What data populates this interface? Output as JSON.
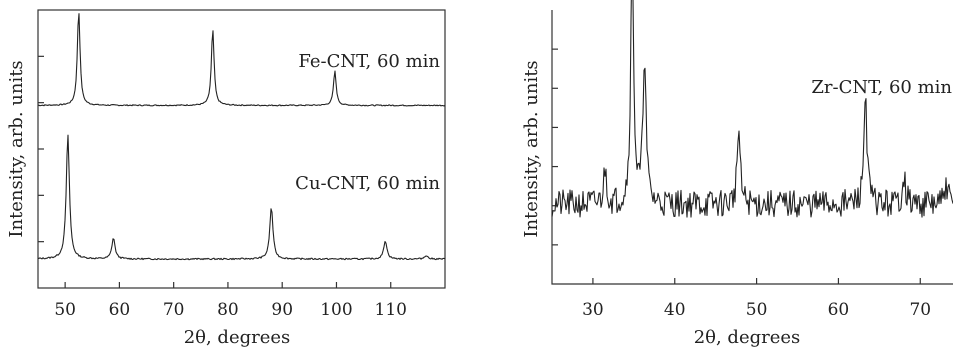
{
  "chart_data": [
    {
      "type": "line",
      "xlabel": "2θ, degrees",
      "ylabel": "Intensity, arb. units",
      "xlim": [
        45,
        120
      ],
      "x_ticks": [
        50,
        60,
        70,
        80,
        90,
        100,
        110
      ],
      "y_tick_count": 5,
      "grid": false,
      "series": [
        {
          "label": "Fe-CNT, 60 min",
          "baseline": 0.08,
          "peaks": [
            {
              "x": 52.5,
              "height": 1.0
            },
            {
              "x": 77.2,
              "height": 0.8
            },
            {
              "x": 99.7,
              "height": 0.36
            }
          ]
        },
        {
          "label": "Cu-CNT, 60 min",
          "baseline": 0.04,
          "peaks": [
            {
              "x": 50.5,
              "height": 1.0
            },
            {
              "x": 58.9,
              "height": 0.17
            },
            {
              "x": 88.0,
              "height": 0.42
            },
            {
              "x": 109.0,
              "height": 0.15
            },
            {
              "x": 116.5,
              "height": 0.03
            }
          ]
        }
      ]
    },
    {
      "type": "line",
      "xlabel": "2θ, degrees",
      "ylabel": "Intensity, arb. units",
      "xlim": [
        25,
        74
      ],
      "x_ticks": [
        30,
        40,
        50,
        60,
        70
      ],
      "y_tick_count": 6,
      "grid": false,
      "series": [
        {
          "label": "Zr-CNT, 60 min",
          "baseline": 0.24,
          "peaks": [
            {
              "x": 31.5,
              "height": 0.14
            },
            {
              "x": 34.8,
              "height": 0.98
            },
            {
              "x": 36.3,
              "height": 0.6
            },
            {
              "x": 47.8,
              "height": 0.3
            },
            {
              "x": 63.3,
              "height": 0.45
            },
            {
              "x": 68.0,
              "height": 0.12
            },
            {
              "x": 73.2,
              "height": 0.08
            }
          ]
        }
      ]
    }
  ]
}
